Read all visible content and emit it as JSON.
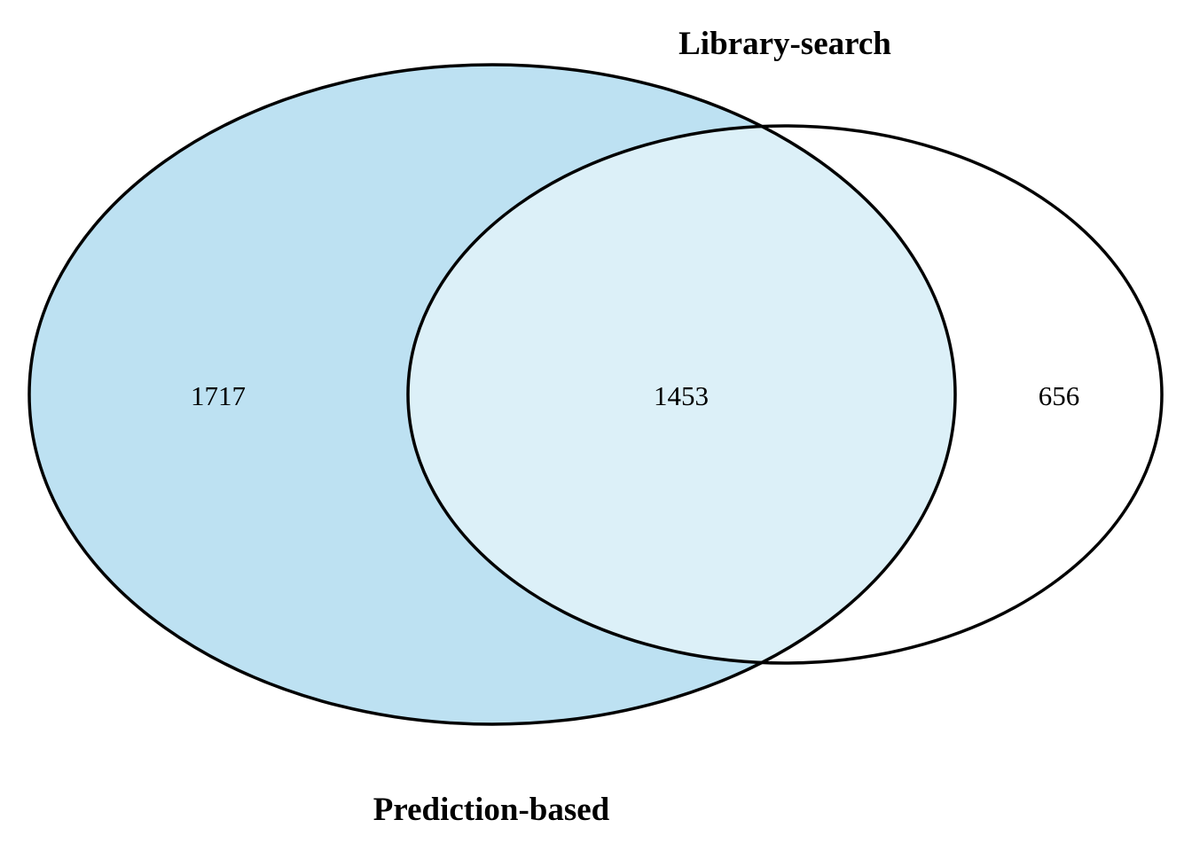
{
  "diagram": {
    "type": "venn",
    "sets": [
      {
        "id": "prediction",
        "label": "Prediction-based",
        "fill": "#bde1f2"
      },
      {
        "id": "library",
        "label": "Library-search",
        "fill": "#ffffff"
      }
    ],
    "counts": {
      "prediction_only": "1717",
      "intersection": "1453",
      "library_only": "656"
    },
    "colors": {
      "prediction_fill": "#bde1f2",
      "intersection_fill": "#dcf0f8",
      "library_fill": "#ffffff",
      "outline": "#000000"
    }
  }
}
